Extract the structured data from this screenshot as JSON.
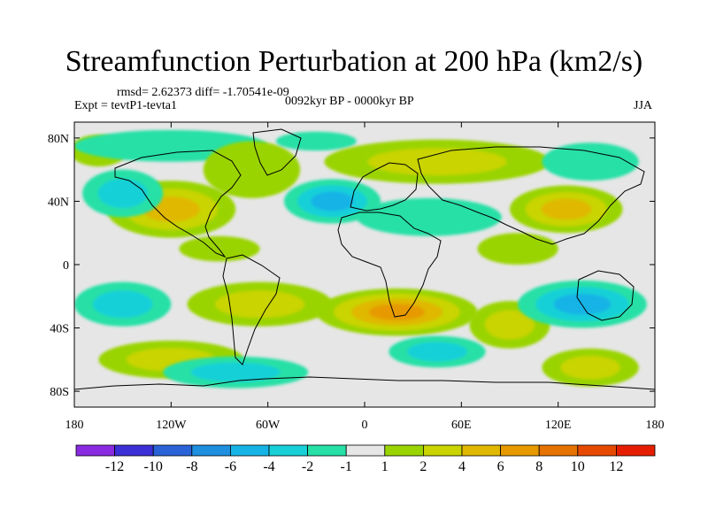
{
  "title": "Streamfunction Perturbation at 200 hPa (km2/s)",
  "stats": {
    "rmsd_label": "rmsd= 2.62373",
    "diff_label": "diff= -1.70541e-09"
  },
  "experiment": "Expt = tevtP1-tevta1",
  "period": "0092kyr BP - 0000kyr BP",
  "season": "JJA",
  "axes": {
    "lat_ticks": [
      {
        "label": "80N",
        "lat": 80
      },
      {
        "label": "40N",
        "lat": 40
      },
      {
        "label": "0",
        "lat": 0
      },
      {
        "label": "40S",
        "lat": -40
      },
      {
        "label": "80S",
        "lat": -80
      }
    ],
    "lon_ticks": [
      {
        "label": "180",
        "lon": -180
      },
      {
        "label": "120W",
        "lon": -120
      },
      {
        "label": "60W",
        "lon": -60
      },
      {
        "label": "0",
        "lon": 0
      },
      {
        "label": "60E",
        "lon": 60
      },
      {
        "label": "120E",
        "lon": 120
      },
      {
        "label": "180",
        "lon": 180
      }
    ],
    "lon_range": [
      -180,
      180
    ],
    "lat_range": [
      -90,
      90
    ]
  },
  "colorbar": {
    "colors": [
      "#8a2be2",
      "#3b2fd6",
      "#2a63d8",
      "#1f8fe0",
      "#16b4e6",
      "#19d0d8",
      "#26e0a6",
      "#e6e6e6",
      "#9ad400",
      "#c9d400",
      "#e0b800",
      "#e69a00",
      "#e67300",
      "#e64a00",
      "#e61e00"
    ],
    "labels": [
      "-12",
      "-10",
      "-8",
      "-6",
      "-4",
      "-2",
      "-1",
      "1",
      "2",
      "4",
      "6",
      "8",
      "10",
      "12"
    ]
  },
  "anomalies": [
    {
      "lon": -120,
      "lat": 35,
      "value": 6,
      "rx": 40,
      "ry": 18
    },
    {
      "lon": -90,
      "lat": 10,
      "value": 1,
      "rx": 25,
      "ry": 8
    },
    {
      "lon": -165,
      "lat": 72,
      "value": 2,
      "rx": 18,
      "ry": 10
    },
    {
      "lon": -150,
      "lat": 45,
      "value": -3,
      "rx": 25,
      "ry": 15
    },
    {
      "lon": -120,
      "lat": 75,
      "value": -2,
      "rx": 60,
      "ry": 10
    },
    {
      "lon": -70,
      "lat": 60,
      "value": 2,
      "rx": 30,
      "ry": 18
    },
    {
      "lon": -20,
      "lat": 40,
      "value": -6,
      "rx": 30,
      "ry": 14
    },
    {
      "lon": -30,
      "lat": 78,
      "value": -2,
      "rx": 25,
      "ry": 6
    },
    {
      "lon": 45,
      "lat": 65,
      "value": 4,
      "rx": 70,
      "ry": 14
    },
    {
      "lon": 40,
      "lat": 30,
      "value": -2,
      "rx": 45,
      "ry": 12
    },
    {
      "lon": 125,
      "lat": 35,
      "value": 6,
      "rx": 35,
      "ry": 15
    },
    {
      "lon": 140,
      "lat": 65,
      "value": -2,
      "rx": 30,
      "ry": 12
    },
    {
      "lon": 95,
      "lat": 10,
      "value": 2,
      "rx": 25,
      "ry": 10
    },
    {
      "lon": 20,
      "lat": -30,
      "value": 8,
      "rx": 50,
      "ry": 15
    },
    {
      "lon": -65,
      "lat": -25,
      "value": 4,
      "rx": 45,
      "ry": 14
    },
    {
      "lon": -150,
      "lat": -25,
      "value": -4,
      "rx": 30,
      "ry": 14
    },
    {
      "lon": -120,
      "lat": -60,
      "value": 4,
      "rx": 45,
      "ry": 12
    },
    {
      "lon": -80,
      "lat": -68,
      "value": -4,
      "rx": 45,
      "ry": 10
    },
    {
      "lon": 45,
      "lat": -55,
      "value": -3,
      "rx": 30,
      "ry": 10
    },
    {
      "lon": 90,
      "lat": -38,
      "value": 4,
      "rx": 25,
      "ry": 15
    },
    {
      "lon": 135,
      "lat": -25,
      "value": -6,
      "rx": 40,
      "ry": 15
    },
    {
      "lon": 140,
      "lat": -65,
      "value": 4,
      "rx": 30,
      "ry": 12
    }
  ]
}
